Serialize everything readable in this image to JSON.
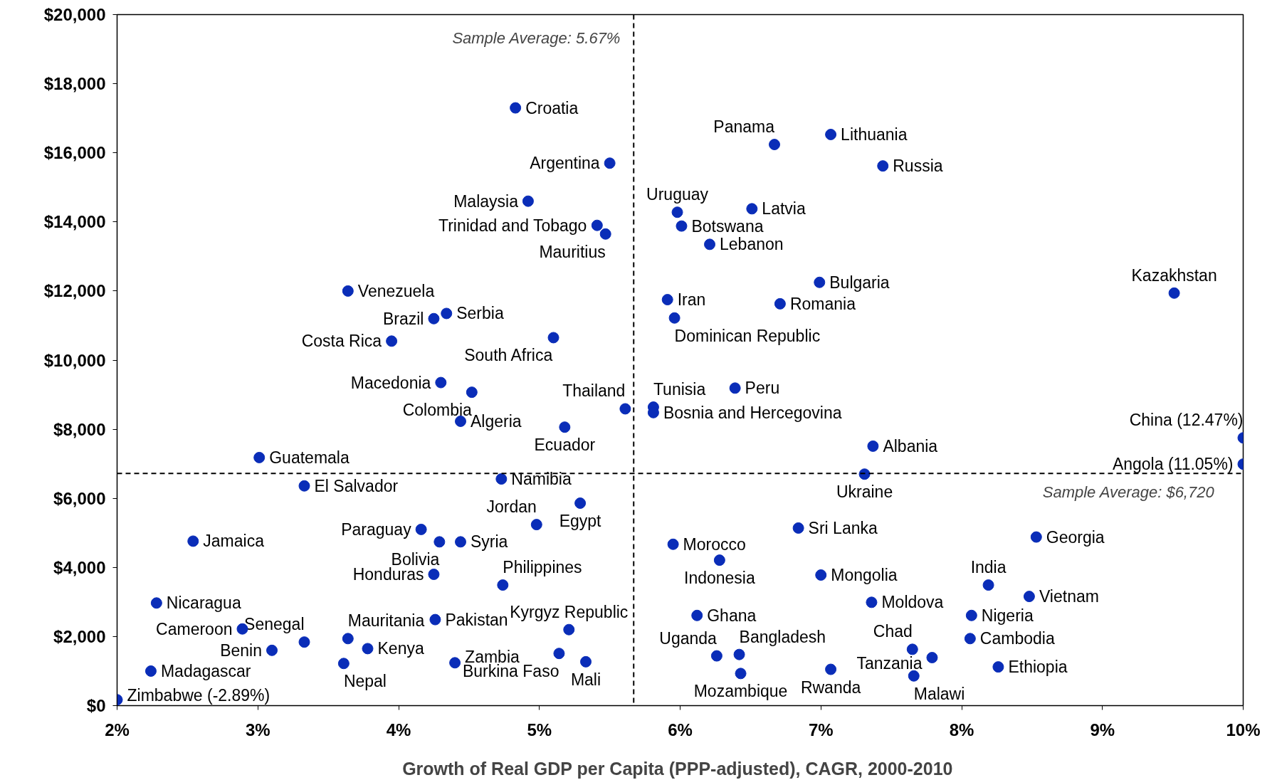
{
  "chart_data": {
    "type": "scatter",
    "xlabel": "Growth of Real GDP per Capita (PPP-adjusted),  CAGR, 2000-2010",
    "marker": "circle",
    "grid": false,
    "xlim": [
      2,
      10
    ],
    "ylim": [
      0,
      20000
    ],
    "xticks": [
      {
        "value": 2,
        "label": "2%"
      },
      {
        "value": 3,
        "label": "3%"
      },
      {
        "value": 4,
        "label": "4%"
      },
      {
        "value": 5,
        "label": "5%"
      },
      {
        "value": 6,
        "label": "6%"
      },
      {
        "value": 7,
        "label": "7%"
      },
      {
        "value": 8,
        "label": "8%"
      },
      {
        "value": 9,
        "label": "9%"
      },
      {
        "value": 10,
        "label": "10%"
      }
    ],
    "yticks": [
      {
        "value": 0,
        "label": "$0"
      },
      {
        "value": 2000,
        "label": "$2,000"
      },
      {
        "value": 4000,
        "label": "$4,000"
      },
      {
        "value": 6000,
        "label": "$6,000"
      },
      {
        "value": 8000,
        "label": "$8,000"
      },
      {
        "value": 10000,
        "label": "$10,000"
      },
      {
        "value": 12000,
        "label": "$12,000"
      },
      {
        "value": 14000,
        "label": "$14,000"
      },
      {
        "value": 16000,
        "label": "$16,000"
      },
      {
        "value": 18000,
        "label": "$18,000"
      },
      {
        "value": 20000,
        "label": "$20,000"
      }
    ],
    "ref_lines": [
      {
        "axis": "x",
        "value": 5.67,
        "label": "Sample Average: 5.67%",
        "color": "#000000",
        "line_style": "dashed"
      },
      {
        "axis": "y",
        "value": 6720,
        "label": "Sample Average: $6,720",
        "color": "#000000",
        "line_style": "dashed"
      }
    ],
    "series": [
      {
        "name": "Croatia",
        "color": "#0a2db8",
        "x": [
          4.83
        ],
        "values": [
          17300
        ]
      },
      {
        "name": "Argentina",
        "color": "#0a2db8",
        "x": [
          5.5
        ],
        "values": [
          15700
        ]
      },
      {
        "name": "Malaysia",
        "color": "#0a2db8",
        "x": [
          4.92
        ],
        "values": [
          14600
        ]
      },
      {
        "name": "Trinidad and Tobago",
        "color": "#0a2db8",
        "x": [
          5.41
        ],
        "values": [
          13900
        ]
      },
      {
        "name": "Mauritius",
        "color": "#0a2db8",
        "x": [
          5.47
        ],
        "values": [
          13650
        ]
      },
      {
        "name": "Venezuela",
        "color": "#0a2db8",
        "x": [
          3.64
        ],
        "values": [
          12000
        ]
      },
      {
        "name": "Brazil",
        "color": "#0a2db8",
        "x": [
          4.25
        ],
        "values": [
          11200
        ]
      },
      {
        "name": "Serbia",
        "color": "#0a2db8",
        "x": [
          4.34
        ],
        "values": [
          11350
        ]
      },
      {
        "name": "Costa Rica",
        "color": "#0a2db8",
        "x": [
          3.95
        ],
        "values": [
          10550
        ]
      },
      {
        "name": "South Africa",
        "color": "#0a2db8",
        "x": [
          5.1
        ],
        "values": [
          10650
        ]
      },
      {
        "name": "Macedonia",
        "color": "#0a2db8",
        "x": [
          4.3
        ],
        "values": [
          9350
        ]
      },
      {
        "name": "Colombia",
        "color": "#0a2db8",
        "x": [
          4.52
        ],
        "values": [
          9070
        ]
      },
      {
        "name": "Algeria",
        "color": "#0a2db8",
        "x": [
          4.44
        ],
        "values": [
          8230
        ]
      },
      {
        "name": "Ecuador",
        "color": "#0a2db8",
        "x": [
          5.18
        ],
        "values": [
          8060
        ]
      },
      {
        "name": "Thailand",
        "color": "#0a2db8",
        "x": [
          5.61
        ],
        "values": [
          8590
        ]
      },
      {
        "name": "Guatemala",
        "color": "#0a2db8",
        "x": [
          3.01
        ],
        "values": [
          7180
        ]
      },
      {
        "name": "El Salvador",
        "color": "#0a2db8",
        "x": [
          3.33
        ],
        "values": [
          6360
        ]
      },
      {
        "name": "Namibia",
        "color": "#0a2db8",
        "x": [
          4.73
        ],
        "values": [
          6560
        ]
      },
      {
        "name": "Egypt",
        "color": "#0a2db8",
        "x": [
          5.29
        ],
        "values": [
          5860
        ]
      },
      {
        "name": "Jordan",
        "color": "#0a2db8",
        "x": [
          4.98
        ],
        "values": [
          5240
        ]
      },
      {
        "name": "Paraguay",
        "color": "#0a2db8",
        "x": [
          4.16
        ],
        "values": [
          5100
        ]
      },
      {
        "name": "Bolivia",
        "color": "#0a2db8",
        "x": [
          4.29
        ],
        "values": [
          4740
        ]
      },
      {
        "name": "Syria",
        "color": "#0a2db8",
        "x": [
          4.44
        ],
        "values": [
          4740
        ]
      },
      {
        "name": "Jamaica",
        "color": "#0a2db8",
        "x": [
          2.54
        ],
        "values": [
          4760
        ]
      },
      {
        "name": "Honduras",
        "color": "#0a2db8",
        "x": [
          4.25
        ],
        "values": [
          3800
        ]
      },
      {
        "name": "Philippines",
        "color": "#0a2db8",
        "x": [
          4.74
        ],
        "values": [
          3490
        ]
      },
      {
        "name": "Kyrgyz Republic",
        "color": "#0a2db8",
        "x": [
          5.21
        ],
        "values": [
          2200
        ]
      },
      {
        "name": "Pakistan",
        "color": "#0a2db8",
        "x": [
          4.26
        ],
        "values": [
          2490
        ]
      },
      {
        "name": "Mauritania",
        "color": "#0a2db8",
        "x": [
          3.64
        ],
        "values": [
          1940
        ]
      },
      {
        "name": "Kenya",
        "color": "#0a2db8",
        "x": [
          3.78
        ],
        "values": [
          1650
        ]
      },
      {
        "name": "Senegal",
        "color": "#0a2db8",
        "x": [
          3.33
        ],
        "values": [
          1840
        ]
      },
      {
        "name": "Cameroon",
        "color": "#0a2db8",
        "x": [
          2.89
        ],
        "values": [
          2220
        ]
      },
      {
        "name": "Nicaragua",
        "color": "#0a2db8",
        "x": [
          2.28
        ],
        "values": [
          2970
        ]
      },
      {
        "name": "Benin",
        "color": "#0a2db8",
        "x": [
          3.1
        ],
        "values": [
          1600
        ]
      },
      {
        "name": "Madagascar",
        "color": "#0a2db8",
        "x": [
          2.24
        ],
        "values": [
          1000
        ]
      },
      {
        "name": "Nepal",
        "color": "#0a2db8",
        "x": [
          3.61
        ],
        "values": [
          1220
        ]
      },
      {
        "name": "Zimbabwe (-2.89%)",
        "color": "#0a2db8",
        "x": [
          2.0
        ],
        "values": [
          170
        ]
      },
      {
        "name": "Zambia",
        "color": "#0a2db8",
        "x": [
          4.4
        ],
        "values": [
          1240
        ]
      },
      {
        "name": "Burkina Faso",
        "color": "#0a2db8",
        "x": [
          5.14
        ],
        "values": [
          1510
        ]
      },
      {
        "name": "Mali",
        "color": "#0a2db8",
        "x": [
          5.33
        ],
        "values": [
          1270
        ]
      },
      {
        "name": "Mozambique",
        "color": "#0a2db8",
        "x": [
          6.43
        ],
        "values": [
          930
        ]
      },
      {
        "name": "Uganda",
        "color": "#0a2db8",
        "x": [
          6.26
        ],
        "values": [
          1440
        ]
      },
      {
        "name": "Bangladesh",
        "color": "#0a2db8",
        "x": [
          6.42
        ],
        "values": [
          1480
        ]
      },
      {
        "name": "Ghana",
        "color": "#0a2db8",
        "x": [
          6.12
        ],
        "values": [
          2610
        ]
      },
      {
        "name": "Indonesia",
        "color": "#0a2db8",
        "x": [
          6.28
        ],
        "values": [
          4210
        ]
      },
      {
        "name": "Morocco",
        "color": "#0a2db8",
        "x": [
          5.95
        ],
        "values": [
          4670
        ]
      },
      {
        "name": "Sri Lanka",
        "color": "#0a2db8",
        "x": [
          6.84
        ],
        "values": [
          5140
        ]
      },
      {
        "name": "Mongolia",
        "color": "#0a2db8",
        "x": [
          7.0
        ],
        "values": [
          3780
        ]
      },
      {
        "name": "Moldova",
        "color": "#0a2db8",
        "x": [
          7.36
        ],
        "values": [
          2990
        ]
      },
      {
        "name": "Rwanda",
        "color": "#0a2db8",
        "x": [
          7.07
        ],
        "values": [
          1050
        ]
      },
      {
        "name": "Chad",
        "color": "#0a2db8",
        "x": [
          7.65
        ],
        "values": [
          1630
        ]
      },
      {
        "name": "Tanzania",
        "color": "#0a2db8",
        "x": [
          7.79
        ],
        "values": [
          1390
        ]
      },
      {
        "name": "Malawi",
        "color": "#0a2db8",
        "x": [
          7.66
        ],
        "values": [
          860
        ]
      },
      {
        "name": "Ukraine",
        "color": "#0a2db8",
        "x": [
          7.31
        ],
        "values": [
          6700
        ]
      },
      {
        "name": "Albania",
        "color": "#0a2db8",
        "x": [
          7.37
        ],
        "values": [
          7510
        ]
      },
      {
        "name": "India",
        "color": "#0a2db8",
        "x": [
          8.19
        ],
        "values": [
          3490
        ]
      },
      {
        "name": "Vietnam",
        "color": "#0a2db8",
        "x": [
          8.48
        ],
        "values": [
          3160
        ]
      },
      {
        "name": "Nigeria",
        "color": "#0a2db8",
        "x": [
          8.07
        ],
        "values": [
          2610
        ]
      },
      {
        "name": "Cambodia",
        "color": "#0a2db8",
        "x": [
          8.06
        ],
        "values": [
          1940
        ]
      },
      {
        "name": "Ethiopia",
        "color": "#0a2db8",
        "x": [
          8.26
        ],
        "values": [
          1120
        ]
      },
      {
        "name": "Georgia",
        "color": "#0a2db8",
        "x": [
          8.53
        ],
        "values": [
          4880
        ]
      },
      {
        "name": "China (12.47%)",
        "color": "#0a2db8",
        "x": [
          10
        ],
        "values": [
          7750
        ]
      },
      {
        "name": "Angola (11.05%)",
        "color": "#0a2db8",
        "x": [
          10
        ],
        "values": [
          6990
        ]
      },
      {
        "name": "Kazakhstan",
        "color": "#0a2db8",
        "x": [
          9.51
        ],
        "values": [
          11940
        ]
      },
      {
        "name": "Panama",
        "color": "#0a2db8",
        "x": [
          6.67
        ],
        "values": [
          16240
        ]
      },
      {
        "name": "Lithuania",
        "color": "#0a2db8",
        "x": [
          7.07
        ],
        "values": [
          16530
        ]
      },
      {
        "name": "Russia",
        "color": "#0a2db8",
        "x": [
          7.44
        ],
        "values": [
          15620
        ]
      },
      {
        "name": "Uruguay",
        "color": "#0a2db8",
        "x": [
          5.98
        ],
        "values": [
          14280
        ]
      },
      {
        "name": "Latvia",
        "color": "#0a2db8",
        "x": [
          6.51
        ],
        "values": [
          14380
        ]
      },
      {
        "name": "Botswana",
        "color": "#0a2db8",
        "x": [
          6.01
        ],
        "values": [
          13880
        ]
      },
      {
        "name": "Lebanon",
        "color": "#0a2db8",
        "x": [
          6.21
        ],
        "values": [
          13350
        ]
      },
      {
        "name": "Bulgaria",
        "color": "#0a2db8",
        "x": [
          6.99
        ],
        "values": [
          12250
        ]
      },
      {
        "name": "Romania",
        "color": "#0a2db8",
        "x": [
          6.71
        ],
        "values": [
          11630
        ]
      },
      {
        "name": "Iran",
        "color": "#0a2db8",
        "x": [
          5.91
        ],
        "values": [
          11750
        ]
      },
      {
        "name": "Dominican Republic",
        "color": "#0a2db8",
        "x": [
          5.96
        ],
        "values": [
          11220
        ]
      },
      {
        "name": "Tunisia",
        "color": "#0a2db8",
        "x": [
          5.81
        ],
        "values": [
          8640
        ]
      },
      {
        "name": "Bosnia and Hercegovina",
        "color": "#0a2db8",
        "x": [
          5.81
        ],
        "values": [
          8480
        ]
      },
      {
        "name": "Peru",
        "color": "#0a2db8",
        "x": [
          6.39
        ],
        "values": [
          9190
        ]
      }
    ]
  }
}
